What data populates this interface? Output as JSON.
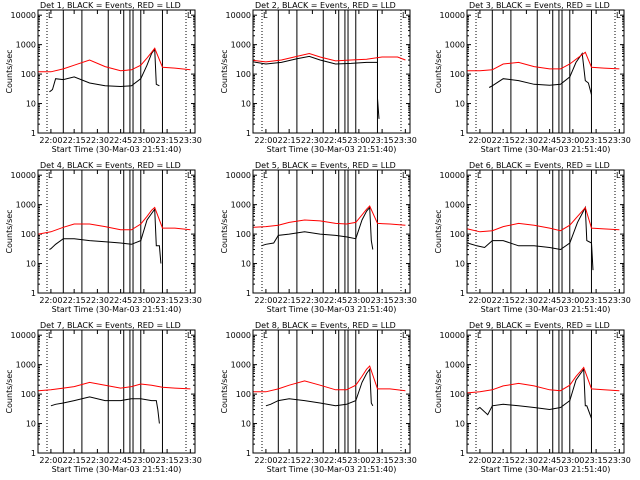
{
  "xticks": [
    "22:00",
    "22:15",
    "22:30",
    "22:45",
    "23:00",
    "23:15",
    "23:30"
  ],
  "yticks": [
    "1",
    "10",
    "100",
    "1000",
    "10000"
  ],
  "xlabel": "Start Time (30-Mar-03 21:51:40)",
  "ylabel": "Counts/sec",
  "colors": {
    "events": "#000000",
    "lld": "#ff0000"
  },
  "chart_data": [
    {
      "type": "line",
      "title": "Det 1, BLACK = Events, RED = LLD",
      "x_unit": "time",
      "xlim": [
        "21:51:40",
        "23:33:00"
      ],
      "ylim": [
        1,
        15000
      ],
      "yscale": "log",
      "markers": [
        "22:08",
        "22:20",
        "22:37",
        "22:47",
        "22:51",
        "22:53",
        "22:58",
        "23:12"
      ],
      "series": [
        {
          "name": "Events",
          "x": [
            "21:59",
            "22:00",
            "22:01",
            "22:03",
            "22:08",
            "22:15",
            "22:25",
            "22:35",
            "22:45",
            "22:52",
            "22:58",
            "23:02",
            "23:05",
            "23:07",
            "23:08",
            "23:10"
          ],
          "values": [
            25,
            27,
            30,
            70,
            65,
            80,
            50,
            40,
            38,
            40,
            70,
            200,
            500,
            700,
            45,
            40
          ]
        },
        {
          "name": "LLD",
          "x": [
            "21:52",
            "22:00",
            "22:08",
            "22:15",
            "22:25",
            "22:35",
            "22:45",
            "22:52",
            "22:58",
            "23:02",
            "23:05",
            "23:07",
            "23:12",
            "23:20",
            "23:30"
          ],
          "values": [
            120,
            120,
            150,
            200,
            300,
            180,
            130,
            140,
            200,
            350,
            550,
            750,
            170,
            160,
            140
          ]
        }
      ]
    },
    {
      "type": "line",
      "title": "Det 2, BLACK = Events, RED = LLD",
      "x_unit": "time",
      "xlim": [
        "21:51:40",
        "23:33:00"
      ],
      "ylim": [
        1,
        15000
      ],
      "yscale": "log",
      "markers": [
        "22:08",
        "22:20",
        "22:37",
        "22:47",
        "22:51",
        "22:53",
        "22:58",
        "23:12"
      ],
      "series": [
        {
          "name": "Events",
          "x": [
            "21:52",
            "22:00",
            "22:10",
            "22:20",
            "22:28",
            "22:35",
            "22:45",
            "22:55",
            "23:05",
            "23:12",
            "23:12",
            "23:13"
          ],
          "values": [
            260,
            220,
            250,
            330,
            400,
            300,
            220,
            230,
            250,
            250,
            15,
            3
          ]
        },
        {
          "name": "LLD",
          "x": [
            "21:52",
            "22:00",
            "22:10",
            "22:20",
            "22:28",
            "22:35",
            "22:45",
            "22:55",
            "23:05",
            "23:15",
            "23:25",
            "23:30"
          ],
          "values": [
            290,
            260,
            300,
            400,
            500,
            380,
            280,
            300,
            320,
            380,
            380,
            300
          ]
        }
      ]
    },
    {
      "type": "line",
      "title": "Det 3, BLACK = Events, RED = LLD",
      "x_unit": "time",
      "xlim": [
        "21:51:40",
        "23:33:00"
      ],
      "ylim": [
        1,
        15000
      ],
      "yscale": "log",
      "markers": [
        "22:08",
        "22:20",
        "22:37",
        "22:47",
        "22:51",
        "22:53",
        "22:58",
        "23:12"
      ],
      "series": [
        {
          "name": "Events",
          "x": [
            "22:06",
            "22:08",
            "22:15",
            "22:25",
            "22:35",
            "22:45",
            "22:52",
            "22:58",
            "23:02",
            "23:06",
            "23:08",
            "23:10",
            "23:12"
          ],
          "values": [
            35,
            40,
            70,
            60,
            45,
            42,
            45,
            80,
            250,
            500,
            60,
            50,
            20
          ]
        },
        {
          "name": "LLD",
          "x": [
            "21:52",
            "22:00",
            "22:08",
            "22:15",
            "22:25",
            "22:35",
            "22:45",
            "22:52",
            "22:58",
            "23:03",
            "23:08",
            "23:12",
            "23:20",
            "23:30"
          ],
          "values": [
            130,
            130,
            140,
            220,
            250,
            180,
            150,
            150,
            220,
            350,
            550,
            170,
            160,
            150
          ]
        }
      ]
    },
    {
      "type": "line",
      "title": "Det 4, BLACK = Events, RED = LLD",
      "x_unit": "time",
      "xlim": [
        "21:51:40",
        "23:33:00"
      ],
      "ylim": [
        1,
        15000
      ],
      "yscale": "log",
      "markers": [
        "22:08",
        "22:20",
        "22:37",
        "22:47",
        "22:51",
        "22:53",
        "22:58",
        "23:12"
      ],
      "series": [
        {
          "name": "Events",
          "x": [
            "21:59",
            "22:00",
            "22:03",
            "22:08",
            "22:15",
            "22:25",
            "22:35",
            "22:45",
            "22:52",
            "22:58",
            "23:02",
            "23:05",
            "23:07",
            "23:08",
            "23:10",
            "23:11"
          ],
          "values": [
            30,
            32,
            45,
            70,
            70,
            60,
            55,
            50,
            45,
            60,
            300,
            500,
            700,
            40,
            40,
            10
          ]
        },
        {
          "name": "LLD",
          "x": [
            "21:52",
            "22:00",
            "22:08",
            "22:15",
            "22:25",
            "22:35",
            "22:45",
            "22:52",
            "22:58",
            "23:02",
            "23:05",
            "23:07",
            "23:12",
            "23:20",
            "23:30"
          ],
          "values": [
            100,
            120,
            170,
            220,
            220,
            180,
            140,
            140,
            220,
            400,
            650,
            800,
            160,
            160,
            140
          ]
        }
      ]
    },
    {
      "type": "line",
      "title": "Det 5, BLACK = Events, RED = LLD",
      "x_unit": "time",
      "xlim": [
        "21:51:40",
        "23:33:00"
      ],
      "ylim": [
        1,
        15000
      ],
      "yscale": "log",
      "markers": [
        "22:08",
        "22:20",
        "22:37",
        "22:47",
        "22:51",
        "22:53",
        "22:58",
        "23:12"
      ],
      "series": [
        {
          "name": "Events",
          "x": [
            "21:57",
            "22:00",
            "22:05",
            "22:08",
            "22:15",
            "22:25",
            "22:35",
            "22:45",
            "22:52",
            "22:58",
            "23:02",
            "23:05",
            "23:07",
            "23:08",
            "23:09"
          ],
          "values": [
            40,
            45,
            50,
            90,
            100,
            120,
            100,
            90,
            80,
            70,
            300,
            600,
            800,
            60,
            30
          ]
        },
        {
          "name": "LLD",
          "x": [
            "21:52",
            "22:00",
            "22:08",
            "22:15",
            "22:25",
            "22:35",
            "22:45",
            "22:52",
            "22:58",
            "23:02",
            "23:05",
            "23:07",
            "23:12",
            "23:20",
            "23:30"
          ],
          "values": [
            170,
            180,
            200,
            250,
            300,
            280,
            230,
            220,
            250,
            450,
            700,
            900,
            230,
            220,
            200
          ]
        }
      ]
    },
    {
      "type": "line",
      "title": "Det 6, BLACK = Events, RED = LLD",
      "x_unit": "time",
      "xlim": [
        "21:51:40",
        "23:33:00"
      ],
      "ylim": [
        1,
        15000
      ],
      "yscale": "log",
      "markers": [
        "22:08",
        "22:20",
        "22:37",
        "22:47",
        "22:51",
        "22:53",
        "22:58",
        "23:12"
      ],
      "series": [
        {
          "name": "Events",
          "x": [
            "21:52",
            "21:58",
            "22:03",
            "22:08",
            "22:15",
            "22:25",
            "22:35",
            "22:45",
            "22:52",
            "22:58",
            "23:03",
            "23:06",
            "23:08",
            "23:09",
            "23:12",
            "23:13"
          ],
          "values": [
            50,
            40,
            35,
            60,
            60,
            40,
            40,
            35,
            30,
            50,
            250,
            500,
            800,
            60,
            50,
            6
          ]
        },
        {
          "name": "LLD",
          "x": [
            "21:52",
            "22:00",
            "22:08",
            "22:15",
            "22:25",
            "22:35",
            "22:45",
            "22:52",
            "22:58",
            "23:03",
            "23:06",
            "23:08",
            "23:12",
            "23:20",
            "23:30"
          ],
          "values": [
            150,
            120,
            130,
            180,
            230,
            200,
            160,
            130,
            200,
            400,
            600,
            800,
            160,
            150,
            140
          ]
        }
      ]
    },
    {
      "type": "line",
      "title": "Det 7, BLACK = Events, RED = LLD",
      "x_unit": "time",
      "xlim": [
        "21:51:40",
        "23:33:00"
      ],
      "ylim": [
        1,
        15000
      ],
      "yscale": "log",
      "markers": [
        "22:08",
        "22:20",
        "22:37",
        "22:47",
        "22:51",
        "22:53",
        "22:58",
        "23:12"
      ],
      "series": [
        {
          "name": "Events",
          "x": [
            "22:00",
            "22:03",
            "22:08",
            "22:15",
            "22:25",
            "22:35",
            "22:45",
            "22:52",
            "22:58",
            "23:05",
            "23:08",
            "23:09",
            "23:10"
          ],
          "values": [
            40,
            45,
            50,
            60,
            80,
            60,
            60,
            70,
            70,
            60,
            60,
            30,
            10
          ]
        },
        {
          "name": "LLD",
          "x": [
            "21:52",
            "22:00",
            "22:08",
            "22:15",
            "22:25",
            "22:35",
            "22:45",
            "22:52",
            "22:58",
            "23:05",
            "23:12",
            "23:20",
            "23:30"
          ],
          "values": [
            130,
            140,
            160,
            180,
            250,
            200,
            160,
            180,
            220,
            200,
            170,
            160,
            150
          ]
        }
      ]
    },
    {
      "type": "line",
      "title": "Det 8, BLACK = Events, RED = LLD",
      "x_unit": "time",
      "xlim": [
        "21:51:40",
        "23:33:00"
      ],
      "ylim": [
        1,
        15000
      ],
      "yscale": "log",
      "markers": [
        "22:08",
        "22:20",
        "22:37",
        "22:47",
        "22:51",
        "22:53",
        "22:58",
        "23:12"
      ],
      "series": [
        {
          "name": "Events",
          "x": [
            "22:00",
            "22:03",
            "22:08",
            "22:15",
            "22:25",
            "22:35",
            "22:45",
            "22:52",
            "22:58",
            "23:02",
            "23:05",
            "23:07",
            "23:08",
            "23:09"
          ],
          "values": [
            40,
            45,
            60,
            70,
            60,
            50,
            40,
            45,
            60,
            250,
            500,
            700,
            50,
            40
          ]
        },
        {
          "name": "LLD",
          "x": [
            "21:52",
            "22:00",
            "22:08",
            "22:15",
            "22:25",
            "22:35",
            "22:45",
            "22:52",
            "22:58",
            "23:02",
            "23:05",
            "23:07",
            "23:12",
            "23:20",
            "23:30"
          ],
          "values": [
            120,
            120,
            150,
            200,
            280,
            200,
            140,
            140,
            200,
            400,
            700,
            900,
            150,
            150,
            130
          ]
        }
      ]
    },
    {
      "type": "line",
      "title": "Det 9, BLACK = Events, RED = LLD",
      "x_unit": "time",
      "xlim": [
        "21:51:40",
        "23:33:00"
      ],
      "ylim": [
        1,
        15000
      ],
      "yscale": "log",
      "markers": [
        "22:08",
        "22:20",
        "22:37",
        "22:47",
        "22:51",
        "22:53",
        "22:58",
        "23:12"
      ],
      "series": [
        {
          "name": "Events",
          "x": [
            "21:58",
            "22:00",
            "22:05",
            "22:08",
            "22:15",
            "22:25",
            "22:35",
            "22:45",
            "22:52",
            "22:58",
            "23:02",
            "23:05",
            "23:07",
            "23:08",
            "23:09",
            "23:12"
          ],
          "values": [
            30,
            35,
            20,
            40,
            45,
            40,
            35,
            30,
            35,
            60,
            300,
            500,
            700,
            40,
            40,
            15
          ]
        },
        {
          "name": "LLD",
          "x": [
            "21:52",
            "22:00",
            "22:08",
            "22:15",
            "22:25",
            "22:35",
            "22:45",
            "22:52",
            "22:58",
            "23:02",
            "23:05",
            "23:07",
            "23:12",
            "23:20",
            "23:30"
          ],
          "values": [
            110,
            120,
            140,
            190,
            230,
            190,
            140,
            130,
            200,
            400,
            600,
            800,
            150,
            140,
            130
          ]
        }
      ]
    }
  ]
}
